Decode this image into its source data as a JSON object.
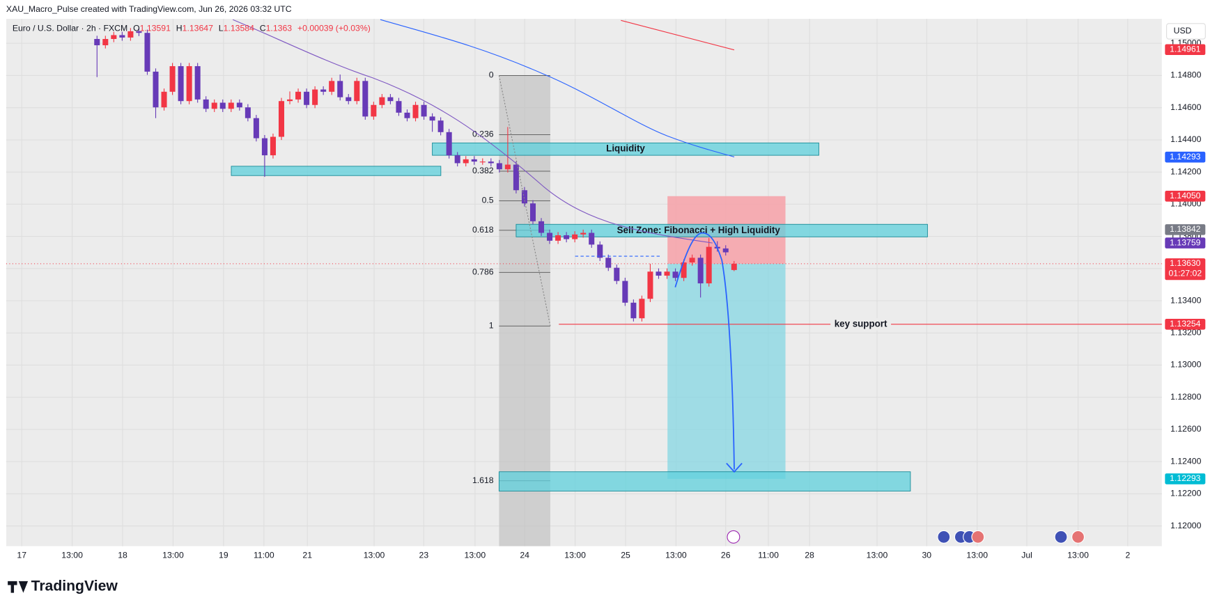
{
  "header": {
    "caption": "XAU_Macro_Pulse created with TradingView.com, Jun 26, 2026 03:32 UTC",
    "symbol": "Euro / U.S. Dollar · 2h · FXCM",
    "o_label": "O",
    "h_label": "H",
    "l_label": "L",
    "c_label": "C",
    "change": "+0.00039 (+0.03%)",
    "currency": "USD",
    "brand": "TradingView"
  },
  "chart_data": {
    "type": "candlestick",
    "up_color": "#f23645",
    "down_color": "#673ab7",
    "open": [
      1.15027,
      1.14988,
      1.15027,
      1.15051,
      1.15036,
      1.15075,
      1.15065,
      1.14824,
      1.14602,
      1.14699,
      1.14858,
      1.14641,
      1.14858,
      1.14651,
      1.14593,
      1.14631,
      1.14593,
      1.14631,
      1.14602,
      1.14535,
      1.1441,
      1.14304,
      1.14419,
      1.14641,
      1.14651,
      1.14699,
      1.14617,
      1.14713,
      1.14699,
      1.14766,
      1.14665,
      1.14641,
      1.14766,
      1.14545,
      1.14617,
      1.14665,
      1.14641,
      1.14569,
      1.14535,
      1.14617,
      1.14545,
      1.1452,
      1.14448,
      1.14304,
      1.14255,
      1.14279,
      1.14265,
      1.14265,
      1.14255,
      1.14217,
      1.14246,
      1.14087,
      1.14005,
      1.13894,
      1.13822,
      1.13773,
      1.13807,
      1.13783,
      1.13812,
      1.13822,
      1.13749,
      1.13667,
      1.13605,
      1.13523,
      1.13388,
      1.13291,
      1.13412,
      1.13581,
      1.13556,
      1.13581,
      1.13542,
      1.13638,
      1.13667,
      1.13508,
      1.13735,
      1.13725,
      1.13591
    ],
    "high": [
      1.15047,
      1.15047,
      1.15071,
      1.15071,
      1.15095,
      1.15095,
      1.15085,
      1.14844,
      1.14719,
      1.14878,
      1.14878,
      1.14878,
      1.14878,
      1.14671,
      1.14651,
      1.14651,
      1.14651,
      1.14651,
      1.14622,
      1.14555,
      1.1443,
      1.14439,
      1.14661,
      1.14701,
      1.14719,
      1.14719,
      1.14733,
      1.14733,
      1.14786,
      1.14806,
      1.14685,
      1.14786,
      1.14786,
      1.14637,
      1.14685,
      1.14685,
      1.14661,
      1.14589,
      1.14637,
      1.14637,
      1.14565,
      1.1454,
      1.14468,
      1.14324,
      1.14299,
      1.14299,
      1.14285,
      1.14285,
      1.14275,
      1.1448,
      1.14266,
      1.14107,
      1.14025,
      1.13914,
      1.13842,
      1.13827,
      1.13827,
      1.13832,
      1.13842,
      1.13842,
      1.13769,
      1.13687,
      1.13625,
      1.13543,
      1.13408,
      1.13432,
      1.1363,
      1.13601,
      1.13601,
      1.13601,
      1.13658,
      1.13687,
      1.13687,
      1.1379,
      1.1377,
      1.13745,
      1.13647
    ],
    "low": [
      1.1479,
      1.14968,
      1.15007,
      1.15016,
      1.15016,
      1.15045,
      1.14804,
      1.14535,
      1.14582,
      1.14679,
      1.14621,
      1.14621,
      1.14631,
      1.14573,
      1.14573,
      1.14573,
      1.14573,
      1.14582,
      1.14515,
      1.1439,
      1.1417,
      1.14284,
      1.14399,
      1.14621,
      1.14631,
      1.14597,
      1.14597,
      1.14679,
      1.14679,
      1.14645,
      1.14621,
      1.14621,
      1.14525,
      1.14525,
      1.14597,
      1.14621,
      1.14549,
      1.14515,
      1.14515,
      1.14525,
      1.1445,
      1.14428,
      1.14284,
      1.14235,
      1.14235,
      1.14245,
      1.14245,
      1.14235,
      1.14197,
      1.14197,
      1.14067,
      1.13985,
      1.13874,
      1.13802,
      1.13753,
      1.13753,
      1.13763,
      1.13763,
      1.13792,
      1.13729,
      1.13647,
      1.13585,
      1.13503,
      1.13368,
      1.13271,
      1.13271,
      1.13392,
      1.13536,
      1.13536,
      1.13522,
      1.13522,
      1.13618,
      1.1342,
      1.13488,
      1.13705,
      1.13681,
      1.13584
    ],
    "close": [
      1.14988,
      1.15027,
      1.15051,
      1.15036,
      1.15075,
      1.15065,
      1.14824,
      1.14602,
      1.14699,
      1.14858,
      1.14641,
      1.14858,
      1.14651,
      1.14593,
      1.14631,
      1.14593,
      1.14631,
      1.14602,
      1.14535,
      1.1441,
      1.14304,
      1.14419,
      1.14641,
      1.14651,
      1.14699,
      1.14617,
      1.14713,
      1.14699,
      1.14766,
      1.14665,
      1.14641,
      1.14766,
      1.14545,
      1.14617,
      1.14665,
      1.14641,
      1.14569,
      1.14535,
      1.14617,
      1.14545,
      1.1452,
      1.14448,
      1.14304,
      1.14255,
      1.14279,
      1.14265,
      1.14265,
      1.14255,
      1.14217,
      1.14246,
      1.14087,
      1.14005,
      1.13894,
      1.13822,
      1.13773,
      1.13807,
      1.13783,
      1.13812,
      1.13822,
      1.13749,
      1.13667,
      1.13605,
      1.13523,
      1.13388,
      1.13291,
      1.13412,
      1.13581,
      1.13556,
      1.13581,
      1.13542,
      1.13638,
      1.13667,
      1.13508,
      1.13735,
      1.13725,
      1.13701,
      1.1363
    ],
    "ylim": [
      1.11874,
      1.15152
    ],
    "yticks": [
      {
        "value": 1.12,
        "label": "1.12000"
      },
      {
        "value": 1.122,
        "label": "1.12200"
      },
      {
        "value": 1.124,
        "label": "1.12400"
      },
      {
        "value": 1.126,
        "label": "1.12600"
      },
      {
        "value": 1.128,
        "label": "1.12800"
      },
      {
        "value": 1.13,
        "label": "1.13000"
      },
      {
        "value": 1.132,
        "label": "1.13200"
      },
      {
        "value": 1.134,
        "label": "1.13400"
      },
      {
        "value": 1.136,
        "label": "1.13600"
      },
      {
        "value": 1.138,
        "label": "1.13800"
      },
      {
        "value": 1.14,
        "label": "1.14000"
      },
      {
        "value": 1.142,
        "label": "1.14200"
      },
      {
        "value": 1.144,
        "label": "1.14400"
      },
      {
        "value": 1.146,
        "label": "1.14600"
      },
      {
        "value": 1.148,
        "label": "1.14800"
      },
      {
        "value": 1.15,
        "label": "1.15000"
      }
    ],
    "x_labels": [
      "17",
      "13:00",
      "18",
      "13:00",
      "19",
      "11:00",
      "21",
      "13:00",
      "23",
      "13:00",
      "24",
      "13:00",
      "25",
      "13:00",
      "26",
      "11:00",
      "28",
      "13:00",
      "30",
      "13:00",
      "Jul",
      "13:00",
      "2"
    ],
    "grid": true,
    "fib": {
      "high": 1.148,
      "low": 1.13243,
      "levels": [
        0,
        0.236,
        0.382,
        0.5,
        0.618,
        0.786,
        1,
        1.618
      ]
    },
    "zones": [
      {
        "label": "Liquidity",
        "top": 1.14381,
        "bottom": 1.14304
      },
      {
        "top": 1.14236,
        "bottom": 1.14178
      },
      {
        "label": "Sell Zone: Fibonacci + High Liquidity",
        "top": 1.13875,
        "bottom": 1.13797
      },
      {
        "top": 1.12337,
        "bottom": 1.12217
      }
    ],
    "position": {
      "stop": 1.1405,
      "entry": 1.1363,
      "target": 1.12293
    },
    "key_support": {
      "label": "key support",
      "value": 1.13254
    },
    "badges": [
      {
        "value": 1.14961,
        "color": "#f23645"
      },
      {
        "value": 1.14293,
        "color": "#2962ff"
      },
      {
        "value": 1.1405,
        "label": "1.14050",
        "color": "#f23645"
      },
      {
        "value": 1.13842,
        "color": "#787b86"
      },
      {
        "value": 1.13759,
        "color": "#673ab7"
      },
      {
        "value": 1.1363,
        "label": "1.13630",
        "color": "#f23645",
        "countdown": "01:27:02"
      },
      {
        "value": 1.13254,
        "color": "#f23645"
      },
      {
        "value": 1.12293,
        "color": "#00bcd4"
      }
    ]
  }
}
